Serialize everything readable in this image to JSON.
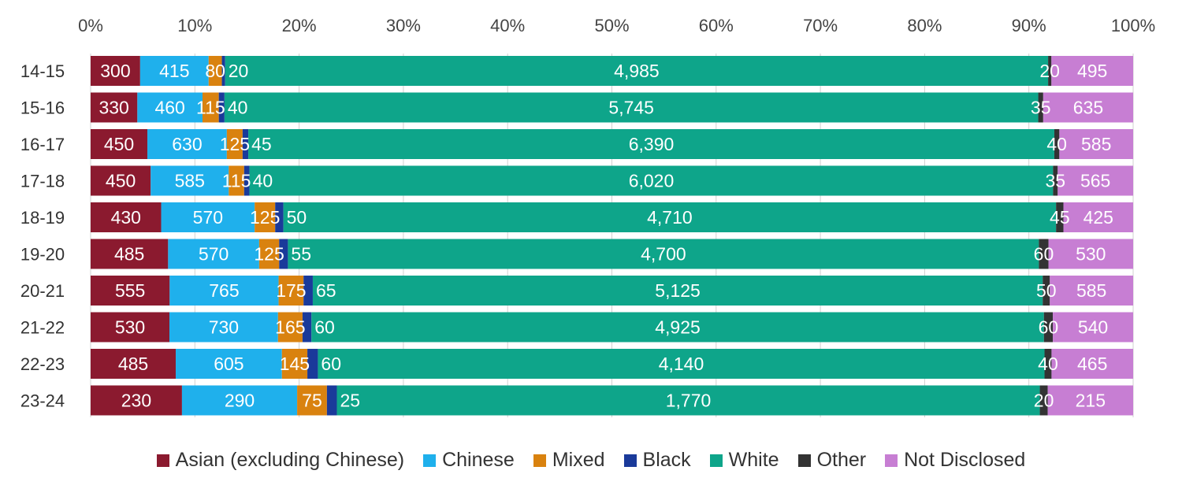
{
  "chart_data": {
    "type": "bar",
    "orientation": "horizontal",
    "stacking": "percent",
    "title": "",
    "xlabel": "",
    "ylabel": "",
    "xlim": [
      0,
      100
    ],
    "x_ticks": [
      "0%",
      "10%",
      "20%",
      "30%",
      "40%",
      "50%",
      "60%",
      "70%",
      "80%",
      "90%",
      "100%"
    ],
    "grid": false,
    "legend_position": "bottom",
    "categories": [
      "14-15",
      "15-16",
      "16-17",
      "17-18",
      "18-19",
      "19-20",
      "20-21",
      "21-22",
      "22-23",
      "23-24"
    ],
    "series": [
      {
        "name": "Asian (excluding Chinese)",
        "color": "#8B1A2F",
        "values": [
          300,
          330,
          450,
          450,
          430,
          485,
          555,
          530,
          485,
          230
        ],
        "labels": [
          "300",
          "330",
          "450",
          "450",
          "430",
          "485",
          "555",
          "530",
          "485",
          "230"
        ]
      },
      {
        "name": "Chinese",
        "color": "#1FB0EC",
        "values": [
          415,
          460,
          630,
          585,
          570,
          570,
          765,
          730,
          605,
          290
        ],
        "labels": [
          "415",
          "460",
          "630",
          "585",
          "570",
          "570",
          "765",
          "730",
          "605",
          "290"
        ]
      },
      {
        "name": "Mixed",
        "color": "#D9820F",
        "values": [
          80,
          115,
          125,
          115,
          125,
          125,
          175,
          165,
          145,
          75
        ],
        "labels": [
          "80",
          "115",
          "125",
          "115",
          "125",
          "125",
          "175",
          "165",
          "145",
          "75"
        ]
      },
      {
        "name": "Black",
        "color": "#1A3A9A",
        "values": [
          20,
          40,
          45,
          40,
          50,
          55,
          65,
          60,
          60,
          25
        ],
        "labels": [
          "20",
          "40",
          "45",
          "40",
          "50",
          "55",
          "65",
          "60",
          "60",
          "25"
        ]
      },
      {
        "name": "White",
        "color": "#0EA58A",
        "values": [
          4985,
          5745,
          6390,
          6020,
          4710,
          4700,
          5125,
          4925,
          4140,
          1770
        ],
        "labels": [
          "4,985",
          "5,745",
          "6,390",
          "6,020",
          "4,710",
          "4,700",
          "5,125",
          "4,925",
          "4,140",
          "1,770"
        ]
      },
      {
        "name": "Other",
        "color": "#333333",
        "values": [
          20,
          35,
          40,
          35,
          45,
          60,
          50,
          60,
          40,
          20
        ],
        "labels": [
          "20",
          "35",
          "40",
          "35",
          "45",
          "60",
          "50",
          "60",
          "40",
          "20"
        ]
      },
      {
        "name": "Not Disclosed",
        "color": "#C77ED3",
        "values": [
          495,
          635,
          585,
          565,
          425,
          530,
          585,
          540,
          465,
          215
        ],
        "labels": [
          "495",
          "635",
          "585",
          "565",
          "425",
          "530",
          "585",
          "540",
          "465",
          "215"
        ]
      }
    ]
  }
}
